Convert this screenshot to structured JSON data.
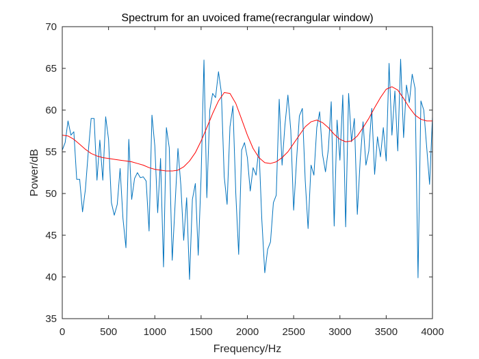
{
  "chart_data": {
    "type": "line",
    "title": "Spectrum for an uvoiced frame(recrangular window)",
    "xlabel": "Frequency/Hz",
    "ylabel": "Power/dB",
    "xlim": [
      0,
      4000
    ],
    "ylim": [
      35,
      70
    ],
    "xticks": [
      0,
      500,
      1000,
      1500,
      2000,
      2500,
      3000,
      3500,
      4000
    ],
    "yticks": [
      35,
      40,
      45,
      50,
      55,
      60,
      65,
      70
    ],
    "grid": false,
    "legend": null,
    "series": [
      {
        "color": "#0072BD",
        "x": [
          0,
          31,
          62,
          94,
          125,
          156,
          188,
          219,
          250,
          281,
          312,
          344,
          375,
          406,
          438,
          469,
          500,
          531,
          562,
          594,
          625,
          656,
          688,
          719,
          750,
          781,
          812,
          844,
          875,
          906,
          938,
          969,
          1000,
          1031,
          1062,
          1094,
          1125,
          1156,
          1188,
          1219,
          1250,
          1281,
          1312,
          1344,
          1375,
          1406,
          1438,
          1469,
          1500,
          1531,
          1562,
          1594,
          1625,
          1656,
          1688,
          1719,
          1750,
          1781,
          1812,
          1844,
          1875,
          1906,
          1938,
          1969,
          2000,
          2031,
          2062,
          2094,
          2125,
          2156,
          2188,
          2219,
          2250,
          2281,
          2312,
          2344,
          2375,
          2406,
          2438,
          2469,
          2500,
          2531,
          2562,
          2594,
          2625,
          2656,
          2688,
          2719,
          2750,
          2781,
          2812,
          2844,
          2875,
          2906,
          2938,
          2969,
          3000,
          3031,
          3062,
          3094,
          3125,
          3156,
          3188,
          3219,
          3250,
          3281,
          3312,
          3344,
          3375,
          3406,
          3438,
          3469,
          3500,
          3531,
          3562,
          3594,
          3625,
          3656,
          3688,
          3719,
          3750,
          3781,
          3812,
          3844,
          3875,
          3906,
          3938,
          3969,
          4000
        ],
        "y": [
          55.2,
          56.1,
          58.7,
          57.0,
          57.4,
          51.7,
          51.7,
          47.8,
          50.5,
          55.0,
          59.0,
          59.0,
          51.6,
          56.4,
          51.6,
          59.2,
          56.5,
          48.9,
          47.4,
          48.7,
          53.0,
          47.0,
          43.5,
          56.5,
          49.3,
          51.8,
          52.5,
          51.9,
          52.0,
          51.5,
          45.5,
          59.4,
          55.7,
          47.7,
          54.2,
          41.2,
          57.9,
          55.5,
          42.0,
          48.7,
          55.4,
          51.0,
          44.4,
          49.5,
          39.7,
          49.3,
          51.2,
          42.6,
          52.0,
          66.0,
          49.5,
          60.0,
          62.0,
          61.5,
          64.6,
          62.1,
          52.0,
          48.7,
          58.0,
          60.5,
          50.0,
          42.7,
          55.2,
          56.1,
          54.3,
          50.3,
          53.1,
          52.2,
          55.6,
          46.9,
          40.5,
          43.3,
          44.2,
          48.9,
          49.8,
          61.3,
          53.4,
          58.2,
          61.8,
          57.6,
          48.0,
          53.9,
          59.3,
          60.2,
          51.6,
          45.8,
          53.4,
          52.2,
          57.9,
          59.8,
          54.7,
          52.6,
          55.3,
          61.0,
          46.1,
          58.8,
          54.0,
          61.8,
          46.0,
          62.0,
          56.2,
          59.0,
          47.5,
          54.0,
          58.6,
          53.4,
          55.1,
          60.2,
          52.3,
          56.8,
          54.4,
          57.9,
          53.9,
          65.6,
          57.0,
          62.3,
          55.1,
          66.1,
          56.7,
          63.0,
          60.9,
          64.3,
          62.6,
          39.9,
          61.1,
          60.0,
          55.5,
          51.1,
          59.2
        ]
      },
      {
        "color": "#FF0000",
        "x": [
          0,
          62,
          125,
          188,
          250,
          312,
          375,
          438,
          500,
          562,
          625,
          688,
          750,
          812,
          875,
          938,
          1000,
          1062,
          1125,
          1188,
          1250,
          1312,
          1375,
          1438,
          1500,
          1562,
          1625,
          1688,
          1750,
          1812,
          1875,
          1938,
          2000,
          2062,
          2125,
          2188,
          2250,
          2312,
          2375,
          2438,
          2500,
          2562,
          2625,
          2688,
          2750,
          2812,
          2875,
          2938,
          3000,
          3062,
          3125,
          3188,
          3250,
          3312,
          3375,
          3438,
          3500,
          3562,
          3625,
          3688,
          3750,
          3812,
          3875,
          3938,
          4000
        ],
        "y": [
          57.0,
          56.9,
          56.5,
          55.9,
          55.3,
          54.8,
          54.5,
          54.3,
          54.2,
          54.1,
          54.0,
          53.9,
          53.8,
          53.6,
          53.4,
          53.1,
          52.9,
          52.8,
          52.7,
          52.7,
          52.8,
          53.2,
          53.9,
          54.9,
          56.3,
          57.9,
          59.6,
          61.1,
          62.1,
          62.0,
          60.8,
          58.9,
          57.0,
          55.4,
          54.3,
          53.7,
          53.6,
          53.8,
          54.3,
          55.0,
          56.0,
          57.0,
          58.0,
          58.6,
          58.8,
          58.5,
          57.9,
          57.1,
          56.5,
          56.2,
          56.3,
          56.9,
          57.9,
          59.0,
          60.3,
          61.5,
          62.5,
          62.8,
          62.4,
          61.4,
          60.3,
          59.4,
          58.9,
          58.7,
          58.7
        ]
      }
    ]
  }
}
